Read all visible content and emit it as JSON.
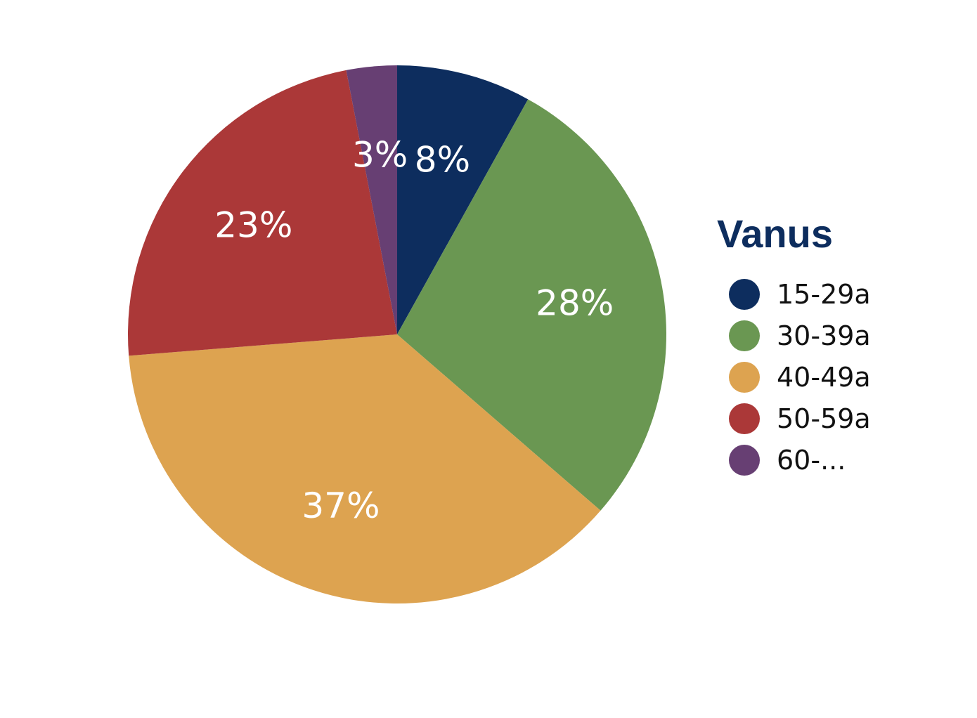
{
  "chart_data": {
    "type": "pie",
    "legend_title": "Vanus",
    "legend_position": "right",
    "start_angle_deg": 0,
    "direction": "clockwise",
    "slices": [
      {
        "label": "15-29a",
        "value": 8,
        "display": "8%",
        "color": "#0d2d5e"
      },
      {
        "label": "30-39a",
        "value": 28,
        "display": "28%",
        "color": "#6a9752"
      },
      {
        "label": "40-49a",
        "value": 37,
        "display": "37%",
        "color": "#dda350"
      },
      {
        "label": "50-59a",
        "value": 23,
        "display": "23%",
        "color": "#ab3838"
      },
      {
        "label": "60-...",
        "value": 3,
        "display": "3%",
        "color": "#673f73"
      }
    ]
  }
}
